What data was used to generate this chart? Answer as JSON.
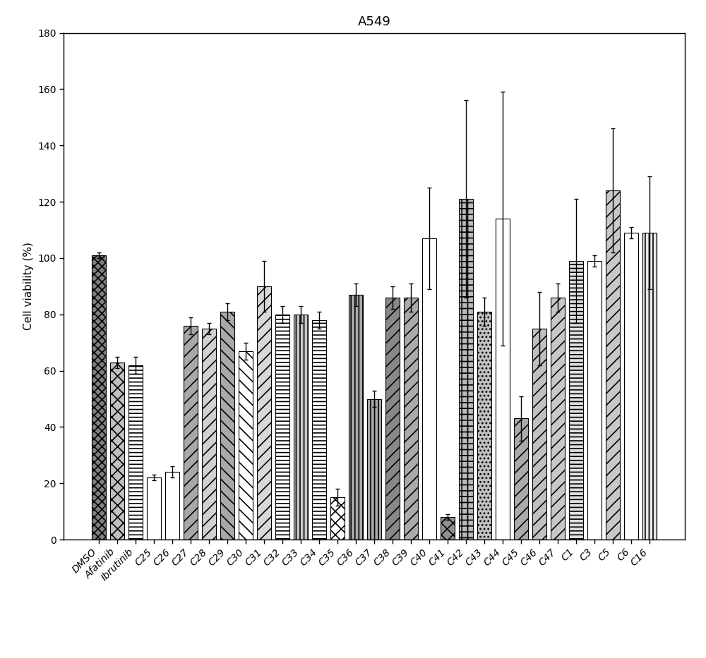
{
  "title": "A549",
  "ylabel": "Cell viability (%)",
  "ylim": [
    0,
    180
  ],
  "yticks": [
    0,
    20,
    40,
    60,
    80,
    100,
    120,
    140,
    160,
    180
  ],
  "categories": [
    "DMSO",
    "Afatinib",
    "Ibrutinib",
    "C25",
    "C26",
    "C27",
    "C28",
    "C29",
    "C30",
    "C31",
    "C32",
    "C33",
    "C34",
    "C35",
    "C36",
    "C37",
    "C38",
    "C39",
    "C40",
    "C41",
    "C42",
    "C43",
    "C44",
    "C45",
    "C46",
    "C47",
    "C1",
    "C3",
    "C5",
    "C6",
    "C16"
  ],
  "values": [
    101,
    63,
    62,
    22,
    24,
    76,
    75,
    81,
    67,
    90,
    80,
    80,
    78,
    15,
    87,
    50,
    86,
    86,
    107,
    8,
    121,
    81,
    114,
    43,
    75,
    86,
    99,
    99,
    124,
    109,
    109
  ],
  "errors": [
    1,
    2,
    3,
    1,
    2,
    3,
    2,
    3,
    3,
    9,
    3,
    3,
    3,
    3,
    4,
    3,
    4,
    5,
    18,
    1,
    35,
    5,
    45,
    8,
    13,
    5,
    22,
    2,
    22,
    2,
    20
  ],
  "hatch_patterns": [
    "xx",
    "ox",
    "---",
    "",
    "",
    "//",
    "//",
    "\\\\",
    "\\\\",
    "//",
    "---",
    "|||",
    "---",
    "xx",
    "|||",
    "|||",
    "///",
    "///",
    "",
    "xx",
    "++",
    "....",
    "",
    "////",
    "////",
    "////",
    "---",
    "////",
    "////",
    "---",
    "|||"
  ],
  "face_colors": [
    "#888888",
    "#bbbbbb",
    "#ffffff",
    "#ffffff",
    "#ffffff",
    "#b8b8b8",
    "#d0d0d0",
    "#b8b8b8",
    "#ffffff",
    "#d3d3d3",
    "#ffffff",
    "#d0d0d0",
    "#ffffff",
    "#ffffff",
    "#b0b0b0",
    "#b0b0b0",
    "#888888",
    "#aaaaaa",
    "#ffffff",
    "#999999",
    "#cccccc",
    "#bbbbbb",
    "#ffffff",
    "#aaaaaa",
    "#c0c0c0",
    "#cccccc",
    "#e0e0e0",
    "#ffffff",
    "#d0d0d0",
    "#ffffff",
    "#e0e0e0"
  ],
  "edgecolor": "#000000",
  "bar_width": 0.75,
  "title_fontsize": 13,
  "label_fontsize": 11,
  "tick_fontsize": 10
}
